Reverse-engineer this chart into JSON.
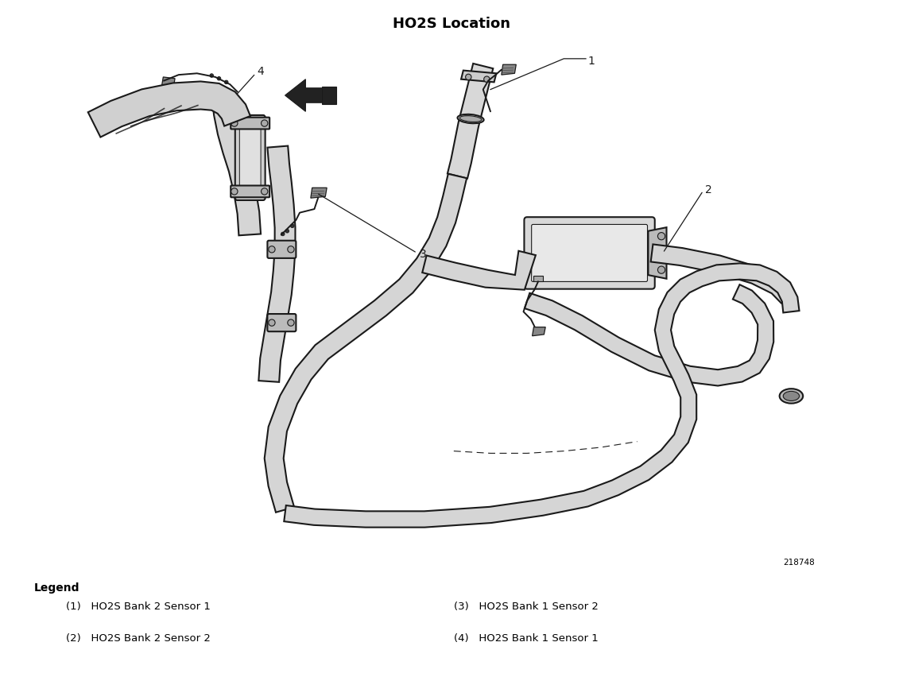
{
  "title": "HO2S Location",
  "title_fontsize": 13,
  "title_fontweight": "bold",
  "diagram_box_color": "#1a1a1a",
  "diagram_bg_color": "#ffffff",
  "fig_bg_color": "#ffffff",
  "figure_number": "218748",
  "figure_number_fontsize": 7.5,
  "legend_title": "Legend",
  "legend_title_fontsize": 10,
  "legend_title_fontweight": "bold",
  "legend_fontsize": 9.5,
  "legend_items_left": [
    "(1)   HO2S Bank 2 Sensor 1",
    "(2)   HO2S Bank 2 Sensor 2"
  ],
  "legend_items_right": [
    "(3)   HO2S Bank 1 Sensor 2",
    "(4)   HO2S Bank 1 Sensor 1"
  ],
  "border_linewidth": 1.2,
  "lw_pipe": 1.5,
  "lw_thin": 1.0,
  "color_line": "#1a1a1a",
  "color_fill_light": "#e8e8e8",
  "color_fill_mid": "#b0b0b0",
  "color_fill_dark": "#555555"
}
